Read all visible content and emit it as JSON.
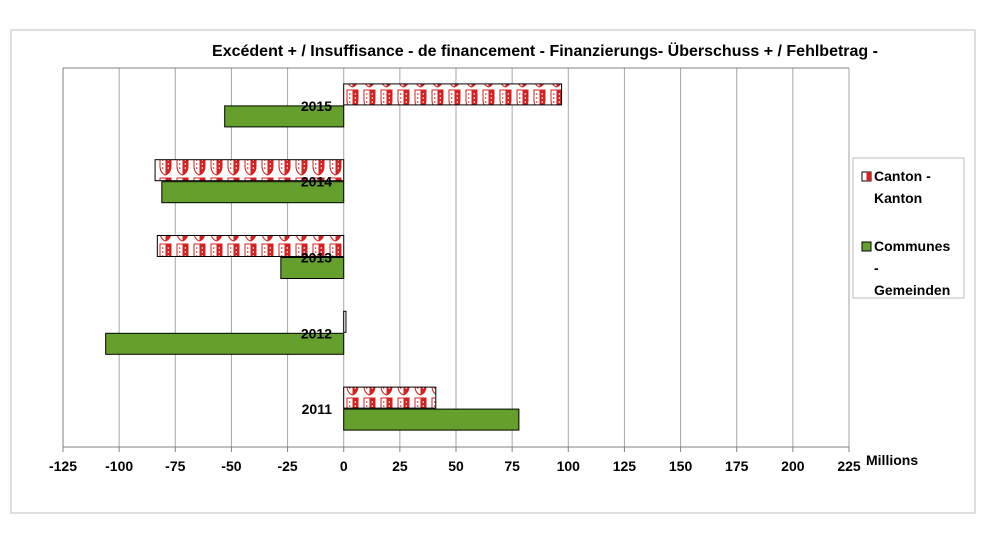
{
  "chart_data": {
    "type": "bar",
    "orientation": "horizontal",
    "title": "Excédent + / Insuffisance - de financement - Finanzierungs- Überschuss + / Fehlbetrag -",
    "xlabel": "Millions",
    "ylabel": "",
    "categories": [
      "2015",
      "2014",
      "2013",
      "2012",
      "2011"
    ],
    "series": [
      {
        "name_lines": [
          "Canton -",
          "Kanton"
        ],
        "color": "#d42020",
        "pattern": "canton-flag",
        "values": [
          97,
          -84,
          -83,
          1,
          41
        ]
      },
      {
        "name_lines": [
          "Communes",
          "-",
          "Gemeinden"
        ],
        "color": "#66a02c",
        "values": [
          -53,
          -81,
          -28,
          -106,
          78
        ]
      }
    ],
    "xlim": [
      -125,
      225
    ],
    "xticks": [
      -125,
      -100,
      -75,
      -50,
      -25,
      0,
      25,
      50,
      75,
      100,
      125,
      150,
      175,
      200,
      225
    ],
    "grid": true,
    "legend_position": "right"
  }
}
